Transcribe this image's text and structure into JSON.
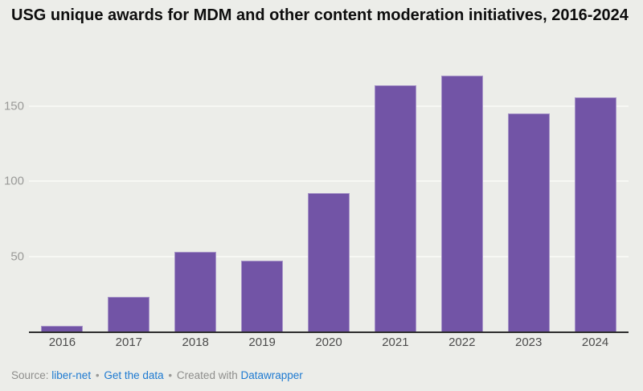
{
  "title": "USG unique awards for MDM and other content moderation initiatives, 2016-2024",
  "chart_data": {
    "type": "bar",
    "categories": [
      "2016",
      "2017",
      "2018",
      "2019",
      "2020",
      "2021",
      "2022",
      "2023",
      "2024"
    ],
    "values": [
      4,
      23,
      53,
      47,
      92,
      164,
      170,
      145,
      156
    ],
    "title": "USG unique awards for MDM and other content moderation initiatives, 2016-2024",
    "xlabel": "",
    "ylabel": "",
    "ylim": [
      0,
      175
    ],
    "yticks": [
      50,
      100,
      150
    ],
    "grid": true,
    "legend": false,
    "bar_color": "#7254A6"
  },
  "footer": {
    "source_label": "Source:",
    "source_link": "liber-net",
    "separator": "•",
    "get_data_link": "Get the data",
    "created_with": "Created with",
    "datawrapper_link": "Datawrapper"
  },
  "colors": {
    "background": "#ECEDE9",
    "bar": "#7254A6",
    "baseline": "#2E2E2E",
    "gridline": "#F7F8F4",
    "y_label": "#9A9A98",
    "x_label": "#4C4C4C",
    "title": "#0D0D0D",
    "footer_text": "#8E8E8C",
    "link": "#1E7AD1"
  }
}
